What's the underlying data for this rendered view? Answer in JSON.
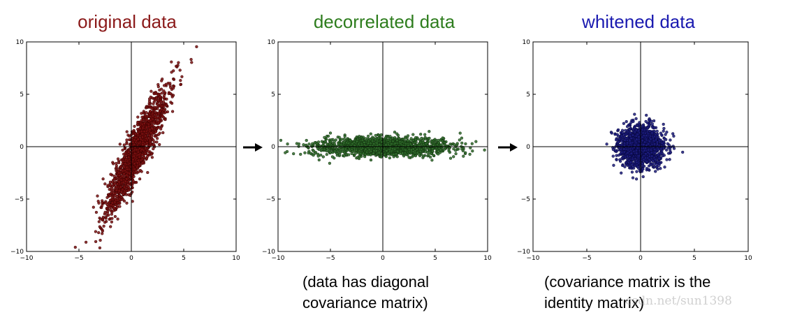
{
  "panels": [
    {
      "title": "original data",
      "title_color": "#8b1a1a"
    },
    {
      "title": "decorrelated data",
      "title_color": "#2e7d1e"
    },
    {
      "title": "whitened data",
      "title_color": "#1a1ab0"
    }
  ],
  "captions": {
    "decorrelated": [
      "(data has diagonal",
      "covariance matrix)"
    ],
    "whitened": [
      "(covariance matrix is the",
      "identity matrix)"
    ]
  },
  "watermark": "csdn.net/sun1398",
  "chart_data": [
    {
      "type": "scatter",
      "title": "original data",
      "xlim": [
        -10,
        10
      ],
      "ylim": [
        -10,
        10
      ],
      "xticks": [
        -10,
        -5,
        0,
        5,
        10
      ],
      "yticks": [
        -10,
        -5,
        0,
        5,
        10
      ],
      "grid": false,
      "marker_fill": "#7a1010",
      "marker_edge": "#3a0000",
      "point_count": 1500,
      "distribution": {
        "mean": [
          0.5,
          -0.5
        ],
        "std_major": 3.4,
        "std_minor": 0.55,
        "angle_deg": 65
      }
    },
    {
      "type": "scatter",
      "title": "decorrelated data",
      "xlim": [
        -10,
        10
      ],
      "ylim": [
        -10,
        10
      ],
      "xticks": [
        -10,
        -5,
        0,
        5,
        10
      ],
      "yticks": [
        -10,
        -5,
        0,
        5,
        10
      ],
      "grid": false,
      "marker_fill": "#2f6b2a",
      "marker_edge": "#0f2e0c",
      "point_count": 1500,
      "distribution": {
        "mean": [
          0.0,
          0.0
        ],
        "std_x": 3.2,
        "std_y": 0.45
      }
    },
    {
      "type": "scatter",
      "title": "whitened data",
      "xlim": [
        -10,
        10
      ],
      "ylim": [
        -10,
        10
      ],
      "xticks": [
        -10,
        -5,
        0,
        5,
        10
      ],
      "yticks": [
        -10,
        -5,
        0,
        5,
        10
      ],
      "grid": false,
      "marker_fill": "#1c1c7e",
      "marker_edge": "#05053a",
      "point_count": 1500,
      "distribution": {
        "mean": [
          0.0,
          0.0
        ],
        "std_x": 1.0,
        "std_y": 1.0
      }
    }
  ]
}
